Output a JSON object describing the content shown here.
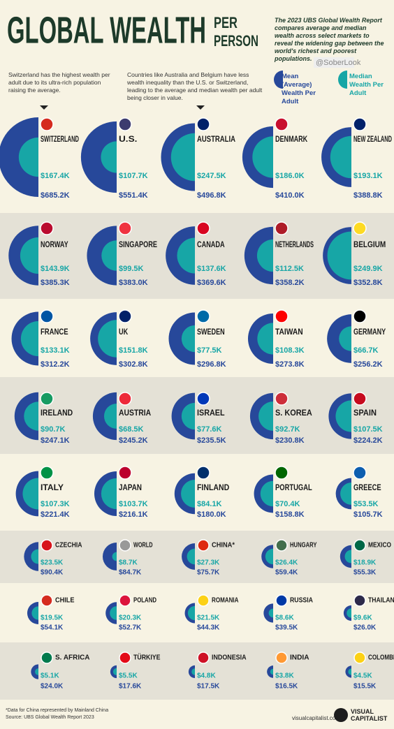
{
  "header": {
    "title": "GLOBAL WEALTH",
    "title_suffix_1": "PER",
    "title_suffix_2": "PERSON",
    "description": "The 2023 UBS Global Wealth Report compares average and median wealth across select markets to reveal the widening gap between the world's richest and poorest populations.",
    "watermark": "@SoberLook"
  },
  "annotations": [
    "Switzerland has the highest wealth per adult due to its ultra-rich population raising the average.",
    "Countries like Australia and Belgium have less wealth inequality than the U.S. or Switzerland, leading to the average and median wealth per adult being closer in value."
  ],
  "chart_data": {
    "type": "semicircle",
    "categories": [
      "SWITZERLAND",
      "U.S.",
      "AUSTRALIA",
      "DENMARK",
      "NEW ZEALAND",
      "NORWAY",
      "SINGAPORE",
      "CANADA",
      "NETHERLANDS",
      "BELGIUM",
      "FRANCE",
      "UK",
      "SWEDEN",
      "TAIWAN",
      "GERMANY",
      "IRELAND",
      "AUSTRIA",
      "ISRAEL",
      "S. KOREA",
      "SPAIN",
      "ITALY",
      "JAPAN",
      "FINLAND",
      "PORTUGAL",
      "GREECE",
      "CZECHIA",
      "WORLD",
      "CHINA*",
      "HUNGARY",
      "MEXICO",
      "CHILE",
      "POLAND",
      "ROMANIA",
      "RUSSIA",
      "THAILAND",
      "S. AFRICA",
      "TÜRKIYE",
      "INDONESIA",
      "INDIA",
      "COLOMBIA"
    ],
    "series": [
      {
        "name": "Mean (Average) Wealth Per Adult",
        "color": "#27489a",
        "values": [
          685.2,
          551.4,
          496.8,
          410.0,
          388.8,
          385.3,
          383.0,
          369.6,
          358.2,
          352.8,
          312.2,
          302.8,
          296.8,
          273.8,
          256.2,
          247.1,
          245.2,
          235.5,
          230.8,
          224.2,
          221.4,
          216.1,
          180.0,
          158.8,
          105.7,
          90.4,
          84.7,
          75.7,
          59.4,
          55.3,
          54.1,
          52.7,
          44.3,
          39.5,
          26.0,
          24.0,
          17.6,
          17.5,
          16.5,
          15.5
        ],
        "value_labels": [
          "$685.2K",
          "$551.4K",
          "$496.8K",
          "$410.0K",
          "$388.8K",
          "$385.3K",
          "$383.0K",
          "$369.6K",
          "$358.2K",
          "$352.8K",
          "$312.2K",
          "$302.8K",
          "$296.8K",
          "$273.8K",
          "$256.2K",
          "$247.1K",
          "$245.2K",
          "$235.5K",
          "$230.8K",
          "$224.2K",
          "$221.4K",
          "$216.1K",
          "$180.0K",
          "$158.8K",
          "$105.7K",
          "$90.4K",
          "$84.7K",
          "$75.7K",
          "$59.4K",
          "$55.3K",
          "$54.1K",
          "$52.7K",
          "$44.3K",
          "$39.5K",
          "$26.0K",
          "$24.0K",
          "$17.6K",
          "$17.5K",
          "$16.5K",
          "$15.5K"
        ]
      },
      {
        "name": "Median Wealth Per Adult",
        "color": "#17a6a6",
        "values": [
          167.4,
          107.7,
          247.5,
          186.0,
          193.1,
          143.9,
          99.5,
          137.6,
          112.5,
          249.9,
          133.1,
          151.8,
          77.5,
          108.3,
          66.7,
          90.7,
          68.5,
          77.6,
          92.7,
          107.5,
          107.3,
          103.7,
          84.1,
          70.4,
          53.5,
          23.5,
          8.7,
          27.3,
          26.4,
          18.9,
          19.5,
          20.3,
          21.5,
          8.6,
          9.6,
          5.1,
          5.5,
          4.8,
          3.8,
          4.5
        ],
        "value_labels": [
          "$167.4K",
          "$107.7K",
          "$247.5K",
          "$186.0K",
          "$193.1K",
          "$143.9K",
          "$99.5K",
          "$137.6K",
          "$112.5K",
          "$249.9K",
          "$133.1K",
          "$151.8K",
          "$77.5K",
          "$108.3K",
          "$66.7K",
          "$90.7K",
          "$68.5K",
          "$77.6K",
          "$92.7K",
          "$107.5K",
          "$107.3K",
          "$103.7K",
          "$84.1K",
          "$70.4K",
          "$53.5K",
          "$23.5K",
          "$8.7K",
          "$27.3K",
          "$26.4K",
          "$18.9K",
          "$19.5K",
          "$20.3K",
          "$21.5K",
          "$8.6K",
          "$9.6K",
          "$5.1K",
          "$5.5K",
          "$4.8K",
          "$3.8K",
          "$4.5K"
        ]
      }
    ]
  },
  "footer": {
    "note": "*Data for China represented by Mainland China",
    "source": "Source: UBS Global Wealth Report 2023",
    "website": "visualcapitalist.com",
    "brand": "VISUAL CAPITALIST"
  }
}
